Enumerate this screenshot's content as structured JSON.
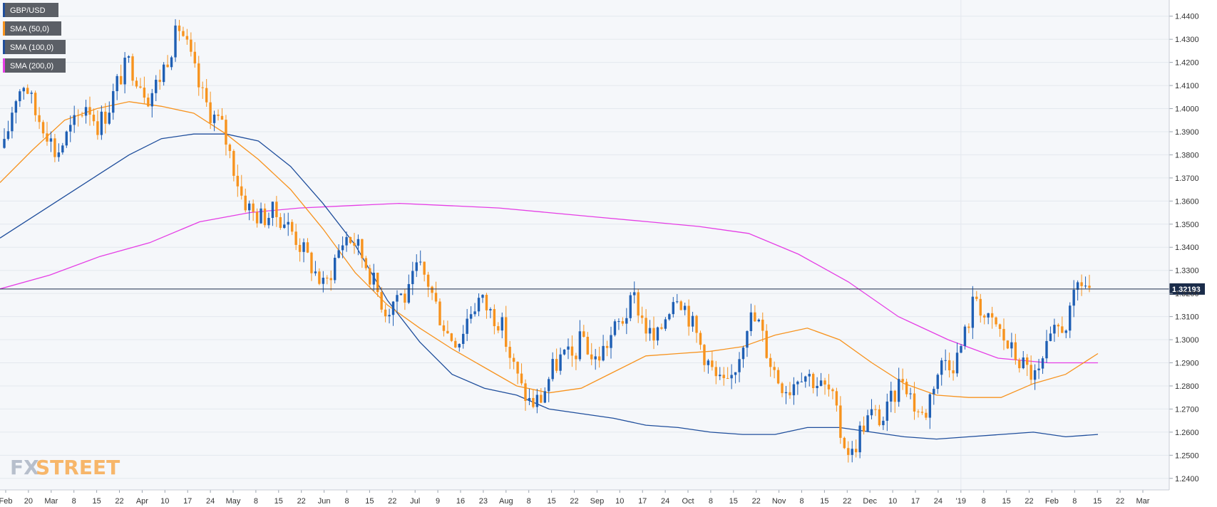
{
  "chart_data": {
    "type": "candlestick",
    "symbol": "GBP/USD",
    "current_price": "1.32193",
    "ylim": [
      1.235,
      1.447
    ],
    "y_ticks": [
      "1.4400",
      "1.4300",
      "1.4200",
      "1.4100",
      "1.4000",
      "1.3900",
      "1.3800",
      "1.3700",
      "1.3600",
      "1.3500",
      "1.3400",
      "1.3300",
      "1.3200",
      "1.3100",
      "1.3000",
      "1.2900",
      "1.2800",
      "1.2700",
      "1.2600",
      "1.2500",
      "1.2400"
    ],
    "x_ticks": [
      "Feb",
      "20",
      "Mar",
      "8",
      "15",
      "22",
      "Apr",
      "10",
      "17",
      "24",
      "May",
      "8",
      "15",
      "22",
      "Jun",
      "8",
      "15",
      "22",
      "Jul",
      "9",
      "16",
      "23",
      "Aug",
      "8",
      "15",
      "22",
      "Sep",
      "10",
      "17",
      "24",
      "Oct",
      "8",
      "15",
      "22",
      "Nov",
      "8",
      "15",
      "22",
      "Dec",
      "10",
      "17",
      "24",
      "'19",
      "8",
      "15",
      "22",
      "Feb",
      "8",
      "15",
      "22",
      "Mar"
    ],
    "legend": [
      {
        "label": "GBP/USD",
        "color": "#1f4e9c"
      },
      {
        "label": "SMA (50,0)",
        "color": "#f7931e"
      },
      {
        "label": "SMA (100,0)",
        "color": "#1f4e9c"
      },
      {
        "label": "SMA (200,0)",
        "color": "#e53ee5"
      }
    ],
    "colors": {
      "up": "#1f5fb4",
      "down": "#f7931e",
      "sma50": "#f7931e",
      "sma100": "#1f4e9c",
      "sma200": "#e53ee5",
      "grid": "#e4e8ee",
      "bg": "#f5f7fa"
    },
    "close_path": [
      1.383,
      1.405,
      1.412,
      1.398,
      1.392,
      1.38,
      1.388,
      1.395,
      1.403,
      1.393,
      1.399,
      1.412,
      1.42,
      1.413,
      1.405,
      1.413,
      1.425,
      1.436,
      1.422,
      1.407,
      1.398,
      1.393,
      1.378,
      1.362,
      1.355,
      1.353,
      1.355,
      1.352,
      1.346,
      1.338,
      1.33,
      1.322,
      1.335,
      1.345,
      1.342,
      1.333,
      1.322,
      1.312,
      1.32,
      1.318,
      1.332,
      1.325,
      1.312,
      1.302,
      1.3,
      1.312,
      1.318,
      1.312,
      1.308,
      1.292,
      1.279,
      1.272,
      1.275,
      1.287,
      1.293,
      1.292,
      1.302,
      1.29,
      1.296,
      1.304,
      1.31,
      1.318,
      1.306,
      1.298,
      1.311,
      1.322,
      1.313,
      1.302,
      1.291,
      1.282,
      1.279,
      1.292,
      1.31,
      1.307,
      1.292,
      1.282,
      1.279,
      1.287,
      1.284,
      1.28,
      1.277,
      1.258,
      1.25,
      1.263,
      1.268,
      1.265,
      1.275,
      1.285,
      1.272,
      1.266,
      1.283,
      1.292,
      1.29,
      1.303,
      1.32,
      1.308,
      1.306,
      1.298,
      1.292,
      1.287,
      1.283,
      1.297,
      1.305,
      1.308,
      1.326,
      1.322
    ],
    "sma50": [
      1.368,
      1.382,
      1.395,
      1.4,
      1.403,
      1.401,
      1.398,
      1.389,
      1.378,
      1.365,
      1.348,
      1.329,
      1.315,
      1.305,
      1.296,
      1.288,
      1.28,
      1.277,
      1.279,
      1.286,
      1.293,
      1.294,
      1.295,
      1.297,
      1.302,
      1.305,
      1.3,
      1.29,
      1.281,
      1.276,
      1.275,
      1.275,
      1.281,
      1.285,
      1.294
    ],
    "sma100": [
      1.344,
      1.353,
      1.362,
      1.371,
      1.38,
      1.387,
      1.389,
      1.389,
      1.386,
      1.375,
      1.359,
      1.341,
      1.317,
      1.299,
      1.285,
      1.279,
      1.276,
      1.27,
      1.268,
      1.266,
      1.263,
      1.262,
      1.26,
      1.259,
      1.259,
      1.262,
      1.262,
      1.26,
      1.258,
      1.257,
      1.258,
      1.259,
      1.26,
      1.258,
      1.259
    ],
    "sma200": [
      1.322,
      1.328,
      1.336,
      1.342,
      1.351,
      1.355,
      1.357,
      1.358,
      1.359,
      1.358,
      1.357,
      1.355,
      1.353,
      1.351,
      1.349,
      1.346,
      1.337,
      1.325,
      1.31,
      1.3,
      1.292,
      1.29,
      1.29
    ]
  },
  "watermark": {
    "fx": "FX",
    "street": "STREET"
  }
}
